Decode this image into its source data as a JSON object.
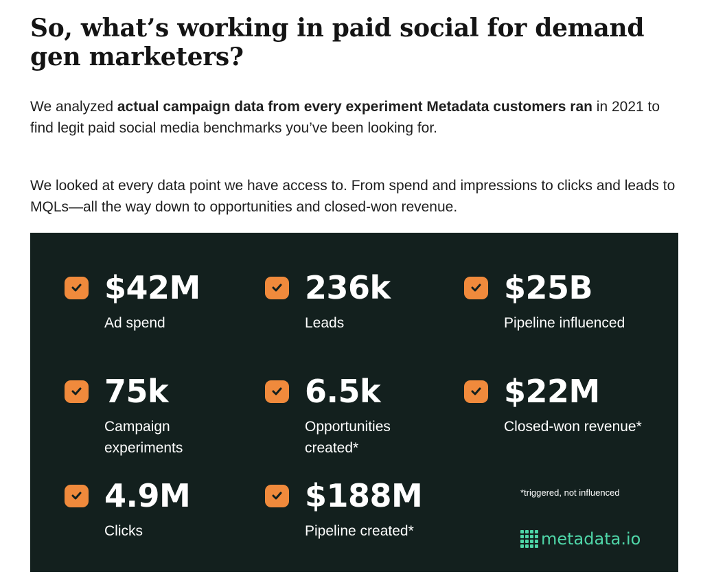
{
  "article": {
    "title": "So, what’s working in paid social for demand gen marketers?",
    "paragraph1": {
      "pre": "We analyzed ",
      "bold": "actual campaign data from every experiment Metadata customers ran",
      "post": " in 2021 to find legit paid social media benchmarks you’ve been looking for."
    },
    "paragraph2": "We looked at every data point we have access to. From spend and impressions to clicks and leads to MQLs—all the way down to opportunities and closed-won revenue."
  },
  "stats": [
    {
      "value": "$42M",
      "label": "Ad spend"
    },
    {
      "value": "236k",
      "label": "Leads"
    },
    {
      "value": "$25B",
      "label": "Pipeline influenced"
    },
    {
      "value": "75k",
      "label": "Campaign experiments"
    },
    {
      "value": "6.5k",
      "label": "Opportunities created*"
    },
    {
      "value": "$22M",
      "label": "Closed-won revenue*"
    },
    {
      "value": "4.9M",
      "label": "Clicks"
    },
    {
      "value": "$188M",
      "label": "Pipeline created*"
    }
  ],
  "footnote": "*triggered, not influenced",
  "brand": {
    "name": "metadata.io"
  },
  "colors": {
    "panel_bg": "#13201e",
    "check_orange": "#f08a3c",
    "brand_green": "#4fd6a8"
  },
  "icons": {
    "check": "check-badge-icon",
    "brand": "metadata-logo-icon"
  }
}
